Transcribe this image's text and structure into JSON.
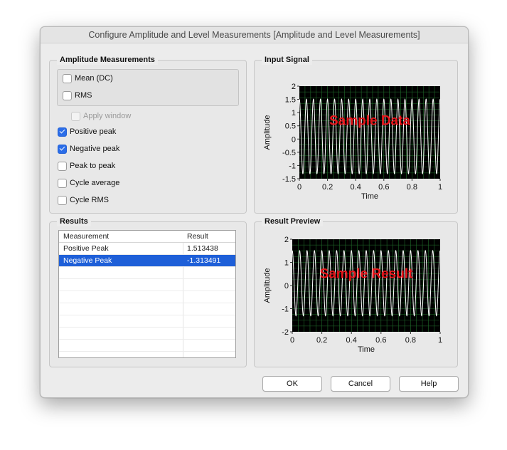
{
  "window": {
    "title": "Configure Amplitude and Level Measurements [Amplitude and Level Measurements]"
  },
  "amplitude_measurements": {
    "title": "Amplitude Measurements",
    "options": [
      {
        "label": "Mean (DC)",
        "checked": false,
        "enabled": true
      },
      {
        "label": "RMS",
        "checked": false,
        "enabled": true
      },
      {
        "label": "Apply window",
        "checked": false,
        "enabled": false
      },
      {
        "label": "Positive peak",
        "checked": true,
        "enabled": true
      },
      {
        "label": "Negative peak",
        "checked": true,
        "enabled": true
      },
      {
        "label": "Peak to peak",
        "checked": false,
        "enabled": true
      },
      {
        "label": "Cycle average",
        "checked": false,
        "enabled": true
      },
      {
        "label": "Cycle RMS",
        "checked": false,
        "enabled": true
      }
    ]
  },
  "results": {
    "title": "Results",
    "columns": [
      "Measurement",
      "Result"
    ],
    "rows": [
      {
        "measurement": "Positive Peak",
        "result": "1.513438",
        "selected": false
      },
      {
        "measurement": "Negative Peak",
        "result": "-1.313491",
        "selected": true
      }
    ]
  },
  "input_signal": {
    "title": "Input Signal",
    "chart_data": {
      "type": "line",
      "overlay_text": "Sample Data",
      "xlabel": "Time",
      "ylabel": "Amplitude",
      "xlim": [
        0,
        1
      ],
      "ylim": [
        -1.5,
        2
      ],
      "x_ticks": [
        "0",
        "0.2",
        "0.4",
        "0.6",
        "0.8",
        "1"
      ],
      "y_ticks": [
        "2",
        "1.5",
        "1",
        "0.5",
        "0",
        "-0.5",
        "-1",
        "-1.5"
      ],
      "series": [
        {
          "cycles": 20,
          "max": 1.51,
          "min": -1.31
        }
      ],
      "grid": true,
      "background": "#000000",
      "grid_color": "#1f6b2a",
      "line_color": "#ffffff",
      "overlay_color": "#e8141a"
    }
  },
  "result_preview": {
    "title": "Result Preview",
    "chart_data": {
      "type": "line",
      "overlay_text": "Sample Result",
      "xlabel": "Time",
      "ylabel": "Amplitude",
      "xlim": [
        0,
        1
      ],
      "ylim": [
        -2,
        2
      ],
      "x_ticks": [
        "0",
        "0.2",
        "0.4",
        "0.6",
        "0.8",
        "1"
      ],
      "y_ticks": [
        "2",
        "1",
        "0",
        "-1",
        "-2"
      ],
      "series": [
        {
          "cycles": 20,
          "max": 1.51,
          "min": -1.31
        }
      ],
      "grid": true,
      "background": "#000000",
      "grid_color": "#1f6b2a",
      "line_color": "#ffffff",
      "overlay_color": "#e8141a"
    }
  },
  "buttons": {
    "ok": "OK",
    "cancel": "Cancel",
    "help": "Help"
  }
}
